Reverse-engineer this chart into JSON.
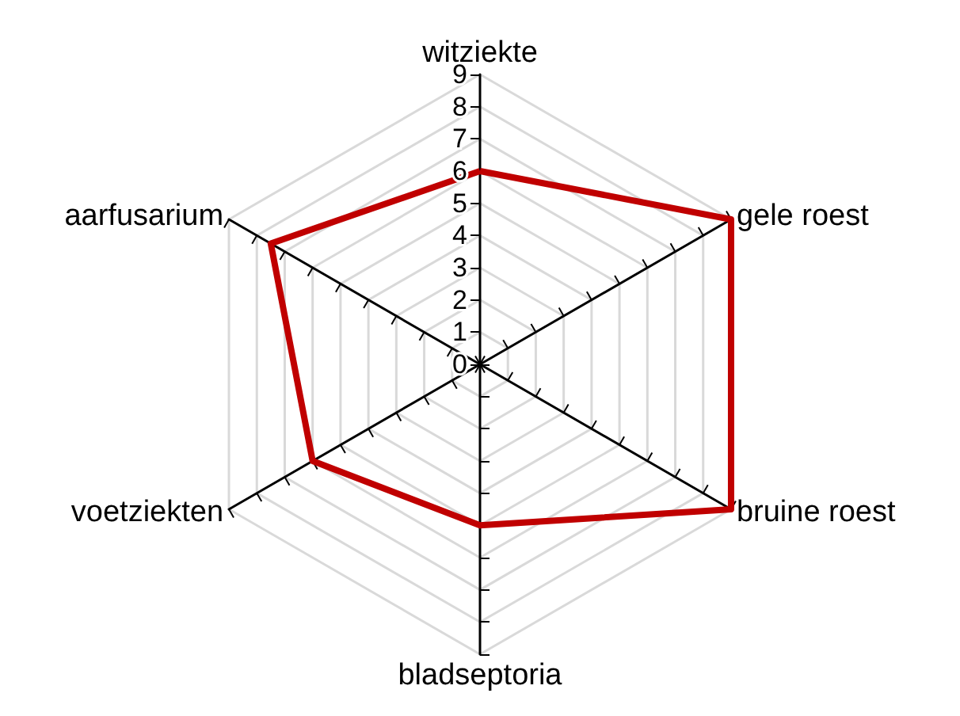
{
  "chart_data": {
    "type": "radar",
    "categories": [
      "witziekte",
      "gele roest",
      "bruine roest",
      "bladseptoria",
      "voetziekten",
      "aarfusarium"
    ],
    "series": [
      {
        "color": "#c00000",
        "values": [
          6,
          9,
          9,
          5,
          6,
          7.5
        ]
      }
    ],
    "ylim": [
      0,
      9
    ],
    "yticks": [
      0,
      1,
      2,
      3,
      4,
      5,
      6,
      7,
      8,
      9
    ],
    "grid": true,
    "marker": "none",
    "line_style": "solid"
  }
}
